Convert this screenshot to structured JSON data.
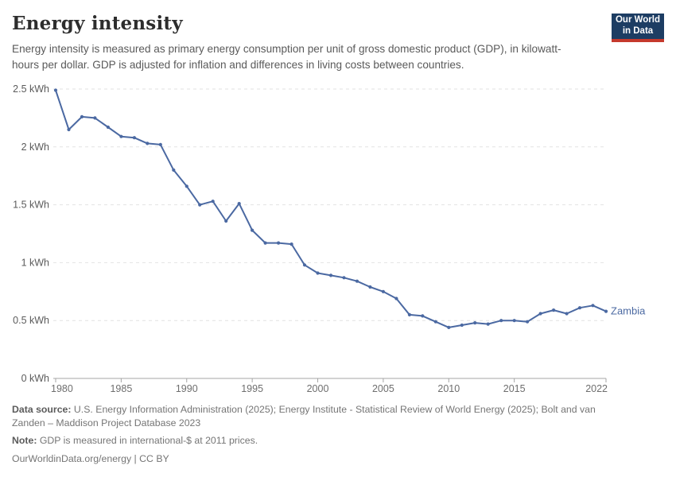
{
  "header": {
    "title": "Energy intensity",
    "subtitle": "Energy intensity is measured as primary energy consumption per unit of gross domestic product (GDP), in kilowatt-hours per dollar. GDP is adjusted for inflation and differences in living costs between countries.",
    "logo": {
      "line1": "Our World",
      "line2": "in Data"
    }
  },
  "chart_data": {
    "type": "line",
    "title": "Energy intensity",
    "entity": "Zambia",
    "unit_suffix": " kWh",
    "xlim": [
      1980,
      2022
    ],
    "ylim": [
      0,
      2.5
    ],
    "x_ticks": [
      1980,
      1985,
      1990,
      1995,
      2000,
      2005,
      2010,
      2015,
      2022
    ],
    "y_ticks": [
      0,
      0.5,
      1,
      1.5,
      2,
      2.5
    ],
    "y_tick_labels": [
      "0 kWh",
      "0.5 kWh",
      "1 kWh",
      "1.5 kWh",
      "2 kWh",
      "2.5 kWh"
    ],
    "grid": "horizontal-dashed",
    "legend_position": "end-of-line",
    "series": [
      {
        "name": "Zambia",
        "color": "#4b69a2",
        "x": [
          1980,
          1981,
          1982,
          1983,
          1984,
          1985,
          1986,
          1987,
          1988,
          1989,
          1990,
          1991,
          1992,
          1993,
          1994,
          1995,
          1996,
          1997,
          1998,
          1999,
          2000,
          2001,
          2002,
          2003,
          2004,
          2005,
          2006,
          2007,
          2008,
          2009,
          2010,
          2011,
          2012,
          2013,
          2014,
          2015,
          2016,
          2017,
          2018,
          2019,
          2020,
          2021,
          2022
        ],
        "values": [
          2.49,
          2.15,
          2.26,
          2.25,
          2.17,
          2.09,
          2.08,
          2.03,
          2.02,
          1.8,
          1.66,
          1.5,
          1.53,
          1.36,
          1.51,
          1.28,
          1.17,
          1.17,
          1.16,
          0.98,
          0.91,
          0.89,
          0.87,
          0.84,
          0.79,
          0.75,
          0.69,
          0.55,
          0.54,
          0.49,
          0.44,
          0.46,
          0.48,
          0.47,
          0.5,
          0.5,
          0.49,
          0.56,
          0.59,
          0.56,
          0.61,
          0.63,
          0.58
        ]
      }
    ]
  },
  "footer": {
    "source_label": "Data source:",
    "source_text": "U.S. Energy Information Administration (2025); Energy Institute - Statistical Review of World Energy (2025); Bolt and van Zanden – Maddison Project Database 2023",
    "note_label": "Note:",
    "note_text": "GDP is measured in international-$ at 2011 prices.",
    "license": "OurWorldinData.org/energy | CC BY"
  },
  "colors": {
    "line": "#4b69a2",
    "gridline": "#e2e2e2",
    "axis": "#a5a5a5",
    "y_tick_label": "#5b5b5b",
    "x_tick_label": "#6e6e6e",
    "title": "#2d2d2d",
    "subtitle": "#5a5a5a",
    "footer": "#757575",
    "logo_bg": "#1d3d63",
    "logo_red": "#c5392d"
  }
}
